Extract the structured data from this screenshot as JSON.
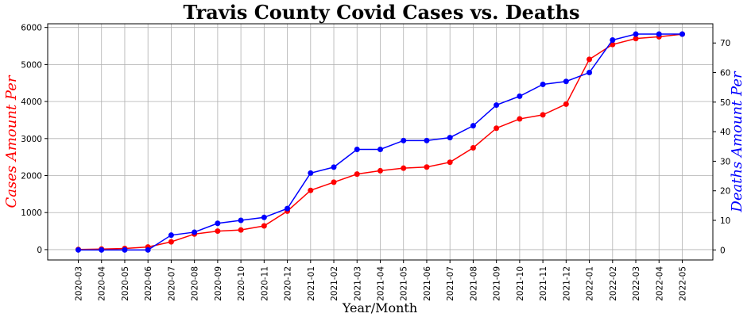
{
  "chart_data": {
    "type": "line",
    "title": "Travis County Covid Cases vs. Deaths",
    "xlabel": "Year/Month",
    "ylabel_left": "Cases Amount Per",
    "ylabel_right": "Deaths Amount Per",
    "grid": true,
    "ylim_left": [
      -280,
      6100
    ],
    "ylim_right": [
      -3.4,
      76.5
    ],
    "yticks_left": [
      0,
      1000,
      2000,
      3000,
      4000,
      5000,
      6000
    ],
    "yticks_right": [
      0,
      10,
      20,
      30,
      40,
      50,
      60,
      70
    ],
    "categories": [
      "2020-03",
      "2020-04",
      "2020-05",
      "2020-06",
      "2020-07",
      "2020-08",
      "2020-09",
      "2020-10",
      "2020-11",
      "2020-12",
      "2021-01",
      "2021-02",
      "2021-03",
      "2021-04",
      "2021-05",
      "2021-06",
      "2021-07",
      "2021-08",
      "2021-09",
      "2021-10",
      "2021-11",
      "2021-12",
      "2022-01",
      "2022-02",
      "2022-03",
      "2022-04",
      "2022-05"
    ],
    "series": [
      {
        "axis": "left",
        "color": "#ff0000",
        "values": [
          5,
          15,
          30,
          70,
          210,
          420,
          500,
          530,
          640,
          1040,
          1600,
          1820,
          2040,
          2130,
          2200,
          2230,
          2360,
          2750,
          3280,
          3530,
          3640,
          3930,
          5140,
          5540,
          5700,
          5750,
          5820
        ]
      },
      {
        "axis": "right",
        "color": "#0000ff",
        "values": [
          0,
          0,
          0,
          0,
          5,
          6,
          9,
          10,
          11,
          14,
          26,
          28,
          34,
          34,
          37,
          37,
          38,
          42,
          49,
          52,
          56,
          57,
          60,
          71,
          73,
          73,
          73
        ]
      }
    ]
  }
}
